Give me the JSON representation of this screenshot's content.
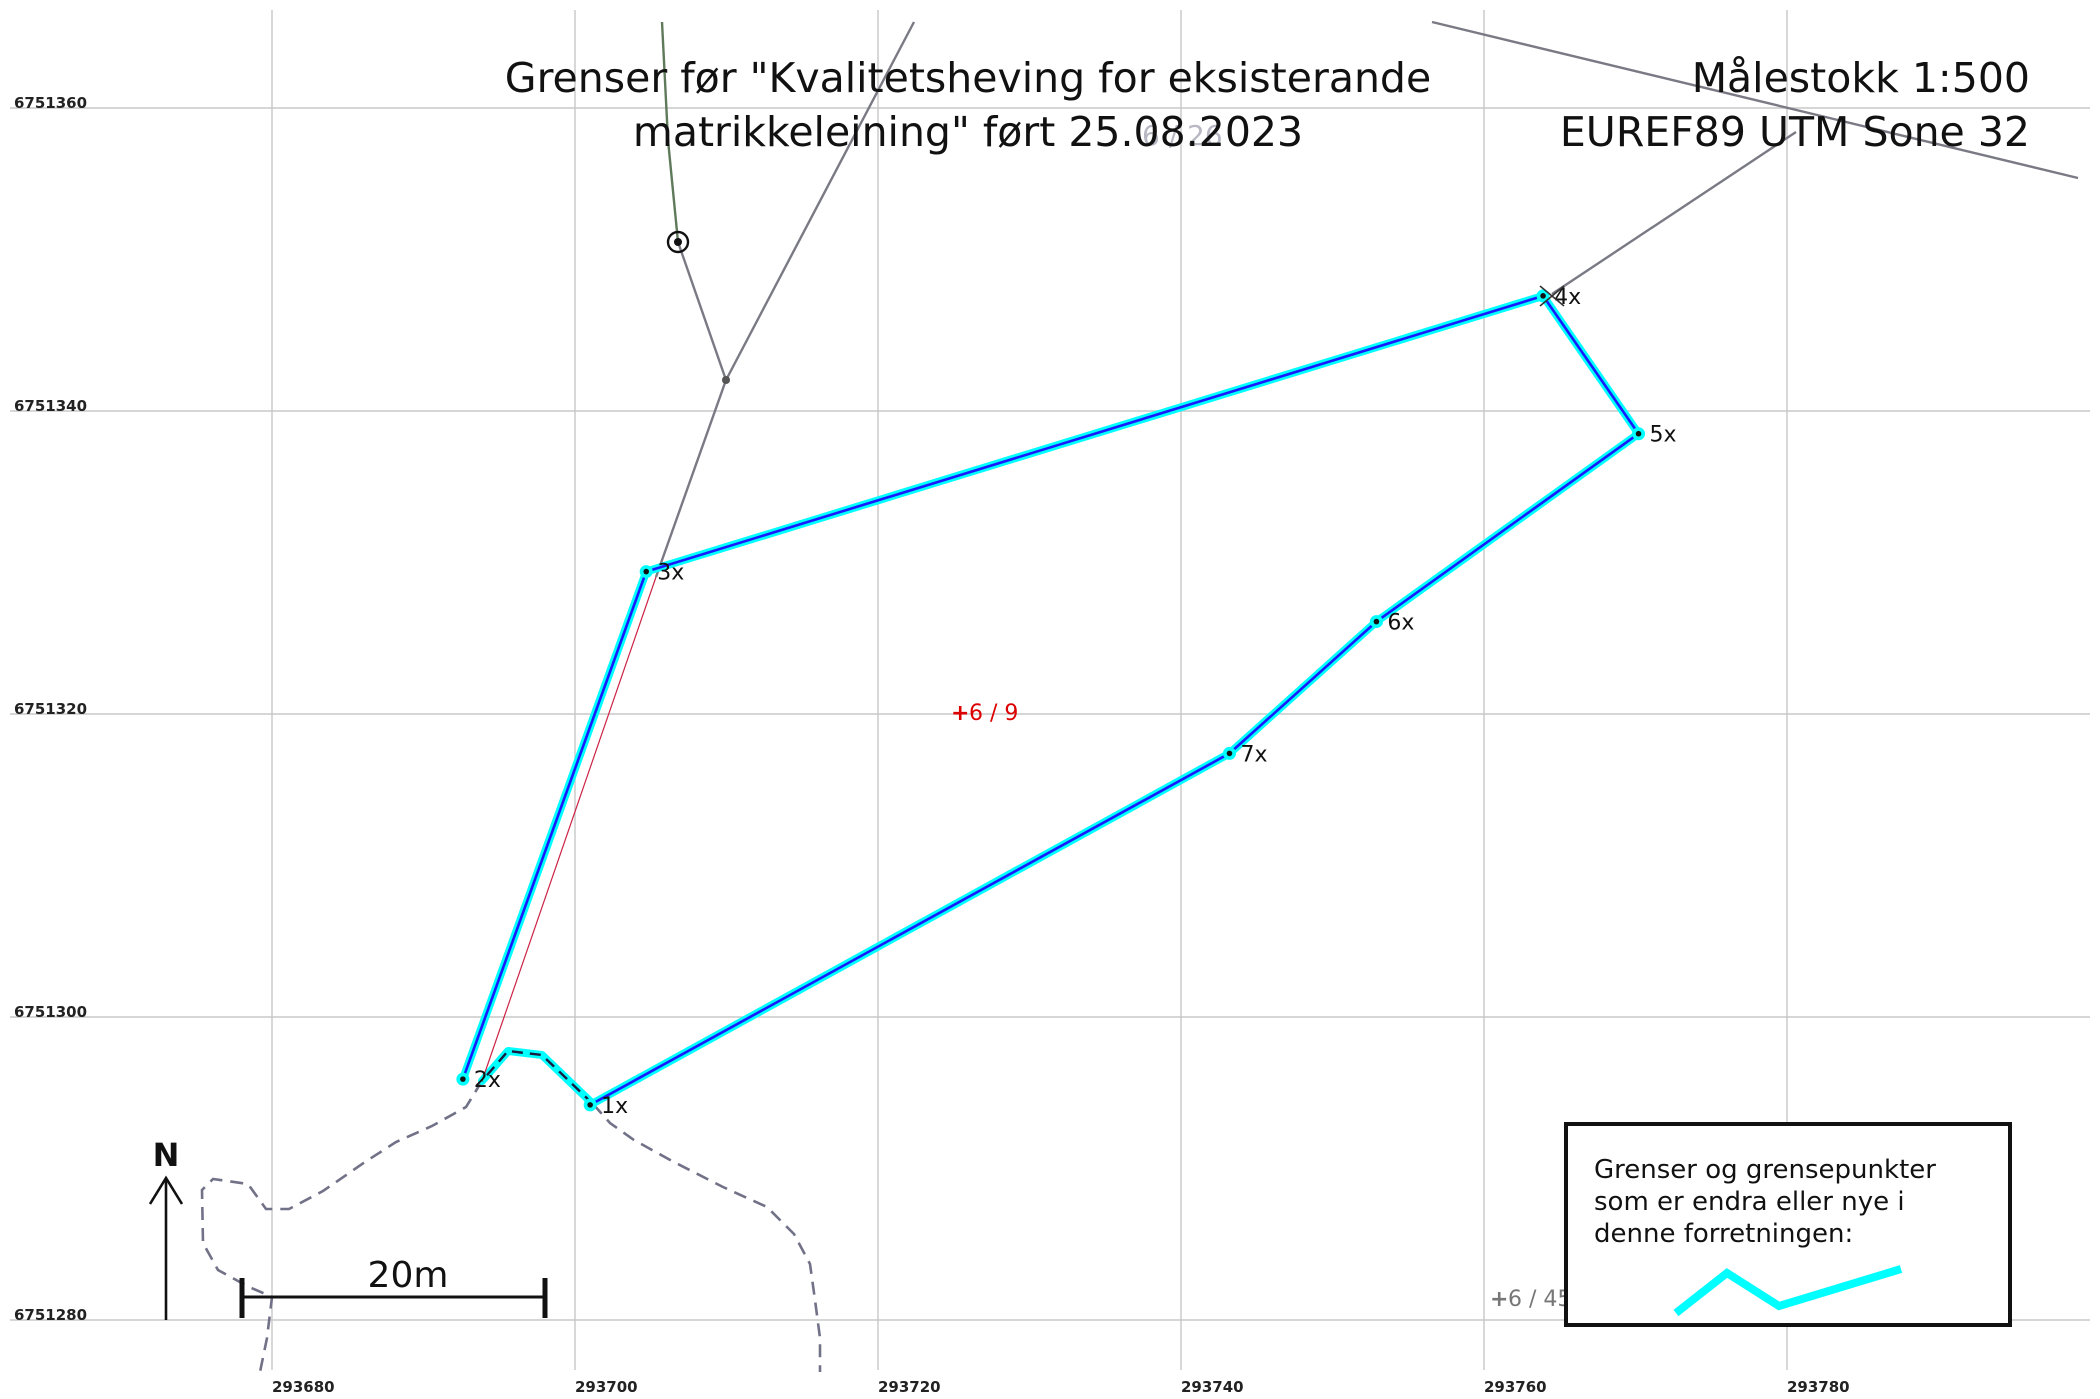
{
  "map": {
    "title_line1": "Grenser før \"Kvalitetsheving for eksisterande",
    "title_line2": "matrikkeleining\" ført 25.08.2023",
    "scale_text": "Målestokk 1:500",
    "crs_text": "EUREF89 UTM Sone 32",
    "background_label": "6 / 26",
    "north_label": "N",
    "scalebar_label": "20m",
    "x_ticks": [
      "293680",
      "293700",
      "293720",
      "293740",
      "293760",
      "293780"
    ],
    "y_ticks": [
      "6751360",
      "6751340",
      "6751320",
      "6751300",
      "6751280"
    ],
    "parcel_label_main": "6 / 9",
    "parcel_label_other": "6 / 45",
    "parcel_label_main_color": "#dd0000",
    "parcel_label_other_color": "#777777",
    "boundary_highlight_color": "#00ffff",
    "boundary_line_color": "#1a1aff",
    "boundary_points": [
      {
        "label": "1x",
        "east": 293701.0,
        "north": 6751294.2
      },
      {
        "label": "2x",
        "east": 293692.6,
        "north": 6751295.9
      },
      {
        "label": "3x",
        "east": 293704.7,
        "north": 6751329.4
      },
      {
        "label": "4x",
        "east": 293763.9,
        "north": 6751347.6
      },
      {
        "label": "5x",
        "east": 293770.2,
        "north": 6751338.5
      },
      {
        "label": "6x",
        "east": 293752.9,
        "north": 6751326.1
      },
      {
        "label": "7x",
        "east": 293743.2,
        "north": 6751317.4
      }
    ],
    "legend": {
      "text_line1": "Grenser og grensepunkter",
      "text_line2": "som er endra eller nye i",
      "text_line3": "denne forretningen:"
    }
  }
}
